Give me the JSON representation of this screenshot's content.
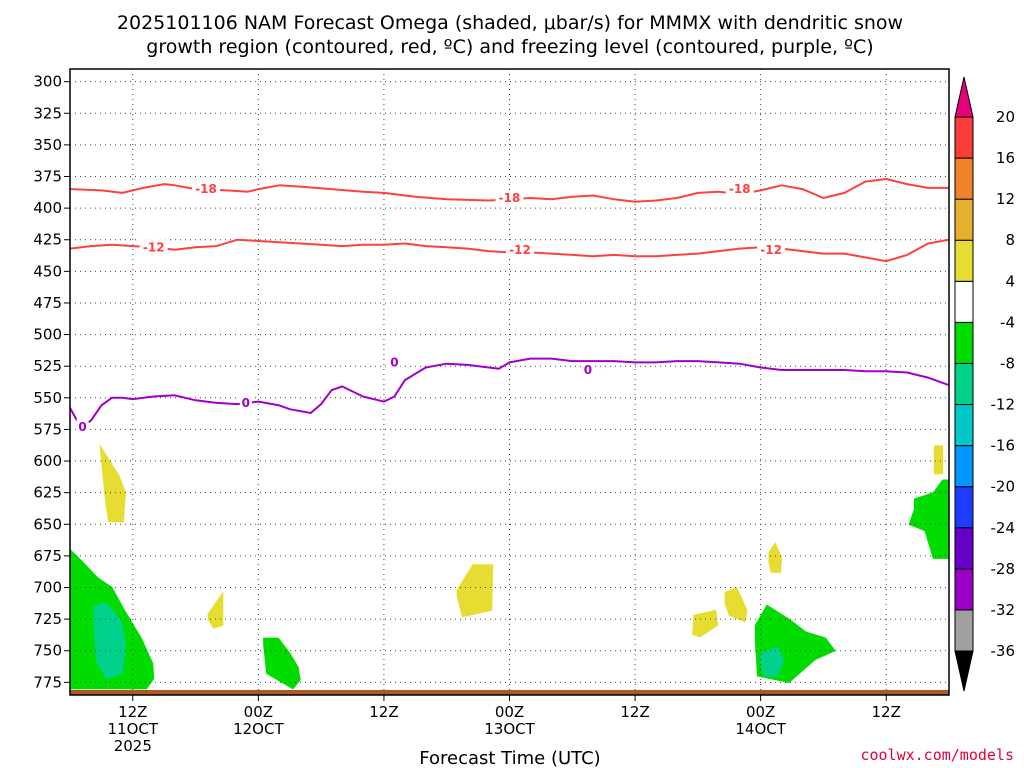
{
  "chart_data": {
    "type": "contour",
    "title_lines": [
      "2025101106 NAM Forecast Omega (shaded, μbar/s) for MMMX with dendritic snow",
      "growth region (contoured, red, ºC) and freezing level (contoured, purple, ºC)"
    ],
    "xlabel": "Forecast Time (UTC)",
    "ylabel": "",
    "credit": "coolwx.com/models",
    "x_range_hours": [
      0,
      84
    ],
    "y_range_hpa": [
      290,
      785
    ],
    "y_ticks": [
      300,
      325,
      350,
      375,
      400,
      425,
      450,
      475,
      500,
      525,
      550,
      575,
      600,
      625,
      650,
      675,
      700,
      725,
      750,
      775
    ],
    "x_ticks": [
      {
        "hour": 6,
        "lines": [
          "12Z",
          "11OCT",
          "2025"
        ]
      },
      {
        "hour": 18,
        "lines": [
          "00Z",
          "12OCT"
        ]
      },
      {
        "hour": 30,
        "lines": [
          "12Z"
        ]
      },
      {
        "hour": 42,
        "lines": [
          "00Z",
          "13OCT"
        ]
      },
      {
        "hour": 54,
        "lines": [
          "12Z"
        ]
      },
      {
        "hour": 66,
        "lines": [
          "00Z",
          "14OCT"
        ]
      },
      {
        "hour": 78,
        "lines": [
          "12Z"
        ]
      }
    ],
    "colorbar": {
      "levels": [
        -36,
        -32,
        -28,
        -24,
        -20,
        -16,
        -12,
        -8,
        -4,
        4,
        8,
        12,
        16,
        20
      ],
      "colors": [
        "#000000",
        "#a0a0a0",
        "#9a00c8",
        "#6400c8",
        "#1e3cff",
        "#0096ff",
        "#00c8c8",
        "#00d28c",
        "#00dc00",
        "#ffffff",
        "#e6dc32",
        "#e6af2d",
        "#f08228",
        "#fa3c3c",
        "#e6007a"
      ]
    },
    "contours": [
      {
        "name": "dgz-minus18",
        "value": -18,
        "color": "#ff4040",
        "x": [
          0,
          3,
          5,
          7,
          9,
          10,
          12,
          15,
          17,
          18,
          20,
          22,
          25,
          28,
          30,
          33,
          36,
          40,
          42,
          44,
          46,
          48,
          50,
          52,
          54,
          56,
          58,
          60,
          62,
          64,
          66,
          68,
          70,
          72,
          74,
          76,
          78,
          80,
          82,
          84
        ],
        "y": [
          385,
          386,
          388,
          384,
          381,
          382,
          385,
          386,
          387,
          385,
          382,
          383,
          385,
          387,
          388,
          391,
          393,
          394,
          393,
          392,
          393,
          391,
          390,
          393,
          395,
          394,
          392,
          388,
          387,
          389,
          386,
          382,
          385,
          392,
          388,
          379,
          377,
          381,
          384,
          384
        ],
        "labels": [
          {
            "x": 13,
            "y": 385,
            "text": "-18"
          },
          {
            "x": 42,
            "y": 392,
            "text": "-18"
          },
          {
            "x": 64,
            "y": 385,
            "text": "-18"
          }
        ]
      },
      {
        "name": "dgz-minus12",
        "value": -12,
        "color": "#ff4040",
        "x": [
          0,
          2,
          4,
          6,
          8,
          10,
          12,
          14,
          16,
          18,
          20,
          22,
          24,
          26,
          28,
          30,
          32,
          34,
          36,
          38,
          40,
          42,
          44,
          46,
          48,
          50,
          52,
          54,
          56,
          58,
          60,
          62,
          64,
          66,
          68,
          70,
          72,
          74,
          76,
          78,
          80,
          82,
          84
        ],
        "y": [
          432,
          430,
          429,
          430,
          431,
          433,
          431,
          430,
          425,
          426,
          427,
          428,
          429,
          430,
          429,
          429,
          428,
          430,
          431,
          432,
          434,
          435,
          435,
          436,
          437,
          438,
          437,
          438,
          438,
          437,
          436,
          434,
          432,
          431,
          432,
          434,
          436,
          436,
          439,
          442,
          437,
          428,
          425
        ],
        "labels": [
          {
            "x": 8,
            "y": 431,
            "text": "-12"
          },
          {
            "x": 43,
            "y": 433,
            "text": "-12"
          },
          {
            "x": 67,
            "y": 433,
            "text": "-12"
          }
        ]
      },
      {
        "name": "freezing-level",
        "value": 0,
        "color": "#a000c8",
        "x": [
          0,
          1,
          2,
          3,
          4,
          5,
          6,
          8,
          10,
          12,
          14,
          16,
          18,
          20,
          21,
          23,
          24,
          25,
          26,
          28,
          30,
          31,
          32,
          34,
          36,
          38,
          40,
          41,
          42,
          44,
          46,
          48,
          50,
          52,
          54,
          56,
          58,
          60,
          62,
          64,
          66,
          68,
          70,
          72,
          74,
          76,
          78,
          80,
          82,
          84
        ],
        "y": [
          558,
          573,
          568,
          556,
          550,
          550,
          551,
          549,
          548,
          552,
          554,
          555,
          553,
          556,
          559,
          562,
          555,
          544,
          541,
          549,
          553,
          549,
          536,
          526,
          523,
          524,
          526,
          527,
          522,
          519,
          519,
          521,
          521,
          521,
          522,
          522,
          521,
          521,
          522,
          523,
          526,
          528,
          528,
          528,
          528,
          529,
          529,
          530,
          534,
          540
        ]
      }
    ],
    "shaded_regions": [
      {
        "value": 6,
        "color": "#e6dc32",
        "x": [
          2.9,
          4.7,
          5.3,
          5.1,
          3.7,
          3.4,
          2.9
        ],
        "y": [
          588,
          612,
          625,
          648,
          648,
          632,
          590
        ]
      },
      {
        "value": -6,
        "color": "#00dc00",
        "x": [
          0.0,
          1.0,
          2.6,
          4.0,
          5.2,
          6.8,
          7.9,
          8.0,
          7.3,
          0.0
        ],
        "y": [
          670,
          678,
          692,
          700,
          718,
          740,
          760,
          772,
          780,
          780
        ]
      },
      {
        "value": -10,
        "color": "#00d28c",
        "x": [
          2.3,
          3.5,
          4.9,
          5.3,
          5.0,
          3.5,
          2.5,
          2.3
        ],
        "y": [
          715,
          712,
          727,
          745,
          768,
          772,
          758,
          730
        ]
      },
      {
        "value": 6,
        "color": "#e6dc32",
        "x": [
          13.2,
          14.6,
          14.6,
          13.7,
          13.2
        ],
        "y": [
          721,
          704,
          730,
          732,
          725
        ]
      },
      {
        "value": -6,
        "color": "#00dc00",
        "x": [
          18.5,
          19.9,
          21.0,
          21.8,
          22.0,
          21.3,
          18.8,
          18.5
        ],
        "y": [
          740,
          740,
          752,
          763,
          773,
          780,
          768,
          745
        ]
      },
      {
        "value": 6,
        "color": "#e6dc32",
        "x": [
          37.0,
          38.5,
          40.4,
          40.3,
          37.5,
          37.0
        ],
        "y": [
          702,
          682,
          682,
          718,
          723,
          707
        ]
      },
      {
        "value": 6,
        "color": "#e6dc32",
        "x": [
          59.6,
          61.7,
          61.9,
          60.2,
          59.5,
          59.6
        ],
        "y": [
          722,
          718,
          730,
          739,
          737,
          725
        ]
      },
      {
        "value": 6,
        "color": "#e6dc32",
        "x": [
          62.6,
          63.7,
          64.7,
          64.5,
          63.0,
          62.6
        ],
        "y": [
          704,
          700,
          718,
          727,
          722,
          713
        ]
      },
      {
        "value": 6,
        "color": "#e6dc32",
        "x": [
          66.8,
          67.4,
          68.0,
          67.9,
          67.0,
          66.8
        ],
        "y": [
          672,
          665,
          677,
          688,
          688,
          680
        ]
      },
      {
        "value": -6,
        "color": "#00dc00",
        "x": [
          65.5,
          66.6,
          68.7,
          70.3,
          72.2,
          73.1,
          71.2,
          68.7,
          65.7,
          65.5
        ],
        "y": [
          730,
          714,
          725,
          735,
          740,
          750,
          757,
          775,
          770,
          742
        ]
      },
      {
        "value": -10,
        "color": "#00d28c",
        "x": [
          66.0,
          67.6,
          68.2,
          67.6,
          66.3,
          66.0
        ],
        "y": [
          752,
          747,
          757,
          770,
          770,
          758
        ]
      },
      {
        "value": -6,
        "color": "#00dc00",
        "x": [
          80.7,
          82.5,
          83.4,
          84.0,
          84.0,
          82.5,
          81.7,
          80.2,
          80.7
        ],
        "y": [
          630,
          625,
          615,
          615,
          677,
          677,
          655,
          650,
          638
        ]
      },
      {
        "value": 6,
        "color": "#e6dc32",
        "x": [
          82.6,
          83.4,
          83.4,
          82.6
        ],
        "y": [
          588,
          588,
          610,
          610
        ]
      }
    ],
    "terrain_fill": {
      "color": "#aa5a28",
      "surface_hpa": 781
    }
  }
}
